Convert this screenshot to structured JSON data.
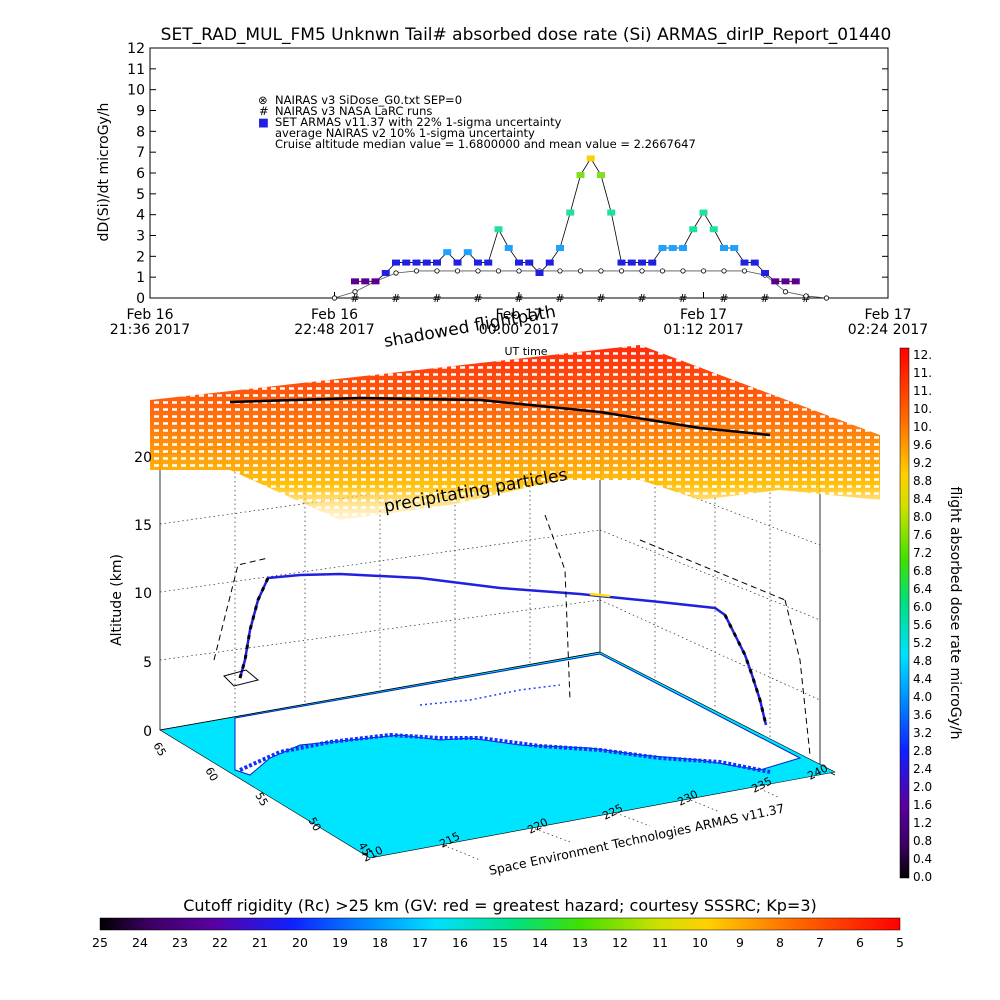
{
  "title": "SET_RAD_MUL_FM5 Unknwn Tail#  absorbed dose rate (Si) ARMAS_dirIP_Report_01440",
  "chart_data": [
    {
      "type": "scatter",
      "ylabel": "dD(Si)/dt microGy/h",
      "xlabel": "UT time",
      "ylim": [
        0,
        12
      ],
      "yticks": [
        "0",
        "1",
        "2",
        "3",
        "4",
        "5",
        "6",
        "7",
        "8",
        "9",
        "10",
        "11",
        "12"
      ],
      "xticks": [
        {
          "day": "Feb 16",
          "time": "21:36 2017"
        },
        {
          "day": "Feb 16",
          "time": "22:48 2017"
        },
        {
          "day": "Feb 17",
          "time": "00:00 2017"
        },
        {
          "day": "Feb 17",
          "time": "01:12 2017"
        },
        {
          "day": "Feb 17",
          "time": "02:24 2017"
        }
      ],
      "x_range_minutes": [
        0,
        288
      ],
      "legend": [
        {
          "marker": "⊗",
          "text": "NAIRAS v3 SiDose_G0.txt SEP=0"
        },
        {
          "marker": "#",
          "text": "NAIRAS v3 NASA LaRC runs"
        },
        {
          "marker": "■",
          "text": "SET ARMAS v11.37 with 22% 1-sigma uncertainty"
        },
        {
          "marker": "",
          "text": "average NAIRAS v2 10% 1-sigma uncertainty"
        },
        {
          "marker": "",
          "text": "Cruise altitude median value = 1.6800000 and mean value = 2.2667647"
        }
      ],
      "series": [
        {
          "name": "SET ARMAS v11.37 with 22% 1-sigma uncertainty",
          "x": [
            80,
            84,
            88,
            92,
            96,
            100,
            104,
            108,
            112,
            116,
            120,
            124,
            128,
            132,
            136,
            140,
            144,
            148,
            152,
            156,
            160,
            164,
            168,
            172,
            176,
            180,
            184,
            188,
            192,
            196,
            200,
            204,
            208,
            212,
            216,
            220,
            224,
            228,
            232,
            236,
            240,
            244,
            248,
            252
          ],
          "y": [
            0.8,
            0.8,
            0.8,
            1.2,
            1.7,
            1.7,
            1.7,
            1.7,
            1.7,
            2.2,
            1.7,
            2.2,
            1.7,
            1.7,
            3.3,
            2.4,
            1.7,
            1.7,
            1.2,
            1.7,
            2.4,
            4.1,
            5.9,
            6.7,
            5.9,
            4.1,
            1.7,
            1.7,
            1.7,
            1.7,
            2.4,
            2.4,
            2.4,
            3.3,
            4.1,
            3.3,
            2.4,
            2.4,
            1.7,
            1.7,
            1.2,
            0.8,
            0.8,
            0.8
          ]
        },
        {
          "name": "NAIRAS v3 SiDose_G0.txt SEP=0",
          "x": [
            72,
            80,
            88,
            96,
            104,
            112,
            120,
            128,
            136,
            144,
            152,
            160,
            168,
            176,
            184,
            192,
            200,
            208,
            216,
            224,
            232,
            240,
            248,
            256,
            264
          ],
          "y": [
            0.0,
            0.3,
            0.8,
            1.2,
            1.3,
            1.3,
            1.3,
            1.3,
            1.3,
            1.3,
            1.3,
            1.3,
            1.3,
            1.3,
            1.3,
            1.3,
            1.3,
            1.3,
            1.3,
            1.3,
            1.3,
            1.1,
            0.3,
            0.1,
            0.0
          ]
        },
        {
          "name": "NAIRAS v3 NASA LaRC runs",
          "x": [
            80,
            96,
            112,
            128,
            144,
            160,
            176,
            192,
            208,
            224,
            240,
            256
          ],
          "y": [
            0.0,
            0.0,
            0.0,
            0.0,
            0.0,
            0.0,
            0.0,
            0.0,
            0.0,
            0.0,
            0.0,
            0.0
          ]
        }
      ]
    },
    {
      "type": "scatter",
      "ylabel": "Altitude (km)",
      "zticks": [
        "0",
        "5",
        "10",
        "15",
        "20"
      ],
      "lon_ticks": [
        "210",
        "215",
        "220",
        "225",
        "230",
        "235",
        "240"
      ],
      "lat_ticks": [
        "45",
        "50",
        "55",
        "60",
        "65"
      ],
      "annotations": [
        "shadowed flightpath",
        "precipitating particles",
        "Space Environment Technologies ARMAS v11.37"
      ]
    }
  ],
  "colorbar_right": {
    "label": "flight absorbed dose rate microGy/h",
    "ticks": [
      "12.",
      "11.",
      "11.",
      "10.",
      "10.",
      "9.6",
      "9.2",
      "8.8",
      "8.4",
      "8.0",
      "7.6",
      "7.2",
      "6.8",
      "6.4",
      "6.0",
      "5.6",
      "5.2",
      "4.8",
      "4.4",
      "4.0",
      "3.6",
      "3.2",
      "2.8",
      "2.4",
      "2.0",
      "1.6",
      "1.2",
      "0.8",
      "0.4",
      "0.0"
    ]
  },
  "colorbar_bottom": {
    "label": "Cutoff rigidity (Rc) >25 km (GV: red = greatest hazard; courtesy SSSRC; Kp=3)",
    "ticks": [
      "25",
      "24",
      "23",
      "22",
      "21",
      "20",
      "19",
      "18",
      "17",
      "16",
      "15",
      "14",
      "13",
      "12",
      "11",
      "10",
      "9",
      "8",
      "7",
      "6",
      "5"
    ]
  },
  "colors": {
    "ocean": "#00e5ff",
    "land": "#ffffff",
    "armas_marker": "#2020e0"
  }
}
